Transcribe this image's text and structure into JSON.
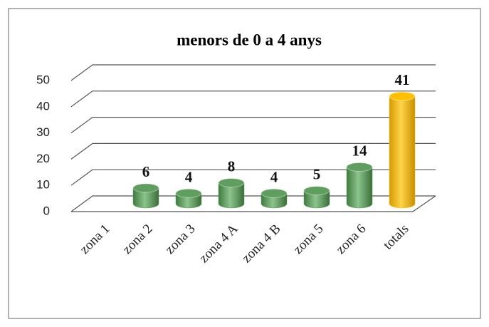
{
  "chart_data": {
    "type": "bar3d",
    "title": "menors de 0 a 4 anys",
    "categories": [
      "zona 1",
      "zona 2",
      "zona 3",
      "zona 4 A",
      "zona 4 B",
      "zona 5",
      "zona 6",
      "totals"
    ],
    "values": [
      null,
      6,
      4,
      8,
      4,
      5,
      14,
      41
    ],
    "colors": [
      "#5f9e5f",
      "#5f9e5f",
      "#5f9e5f",
      "#5f9e5f",
      "#5f9e5f",
      "#5f9e5f",
      "#5f9e5f",
      "#ffc000"
    ],
    "ylim": [
      0,
      50
    ],
    "yticks": [
      0,
      10,
      20,
      30,
      40,
      50
    ],
    "grid": true
  }
}
